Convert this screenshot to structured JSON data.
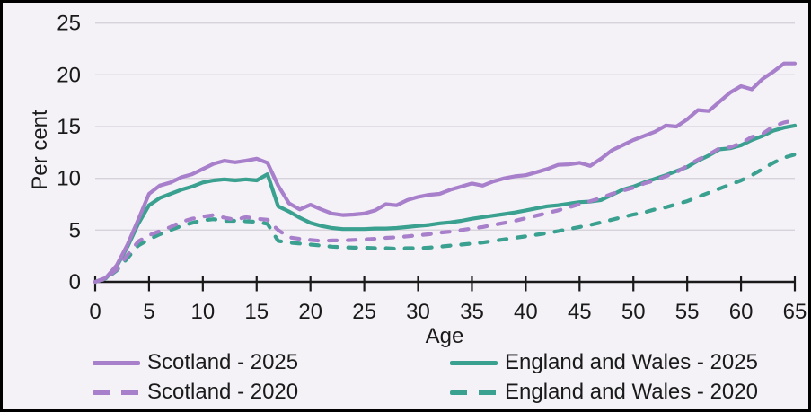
{
  "colors": {
    "purple": "#a87fcb",
    "teal": "#3aa08f",
    "grid": "#d6d3da",
    "axis": "#1a1a1a",
    "background": "#f4f2f7",
    "frame": "#000000"
  },
  "chart_data": {
    "type": "line",
    "title": "",
    "xlabel": "Age",
    "ylabel": "Per cent",
    "xlim": [
      0,
      65
    ],
    "ylim": [
      0,
      25
    ],
    "x_ticks": [
      0,
      5,
      10,
      15,
      20,
      25,
      30,
      35,
      40,
      45,
      50,
      55,
      60,
      65
    ],
    "y_ticks": [
      0,
      5,
      10,
      15,
      20,
      25
    ],
    "grid": "horizontal",
    "legend_position": "bottom",
    "x_start": 0,
    "x_step": 1,
    "series": [
      {
        "id": "scotland-2025",
        "name": "Scotland - 2025",
        "color": "#a87fcb",
        "style": "solid",
        "values": [
          0,
          0.4,
          1.6,
          3.6,
          6.0,
          8.5,
          9.3,
          9.6,
          10.1,
          10.4,
          10.9,
          11.4,
          11.7,
          11.55,
          11.7,
          11.9,
          11.5,
          9.3,
          7.6,
          7.0,
          7.45,
          7.0,
          6.6,
          6.45,
          6.5,
          6.6,
          6.9,
          7.5,
          7.4,
          7.9,
          8.2,
          8.4,
          8.5,
          8.9,
          9.2,
          9.5,
          9.3,
          9.7,
          10.0,
          10.2,
          10.3,
          10.6,
          10.9,
          11.3,
          11.35,
          11.5,
          11.2,
          11.9,
          12.7,
          13.2,
          13.7,
          14.1,
          14.5,
          15.1,
          15.0,
          15.7,
          16.6,
          16.5,
          17.4,
          18.3,
          18.9,
          18.6,
          19.6,
          20.3,
          21.1,
          21.1
        ]
      },
      {
        "id": "scotland-2020",
        "name": "Scotland - 2020",
        "color": "#a87fcb",
        "style": "dashed",
        "values": [
          0,
          0.3,
          1.2,
          2.6,
          3.9,
          4.5,
          4.9,
          5.3,
          5.8,
          6.1,
          6.3,
          6.45,
          6.2,
          6.0,
          6.25,
          6.1,
          6.0,
          5.0,
          4.3,
          4.15,
          4.05,
          3.95,
          4.0,
          4.0,
          4.05,
          4.1,
          4.15,
          4.25,
          4.3,
          4.4,
          4.5,
          4.6,
          4.75,
          4.85,
          5.0,
          5.15,
          5.3,
          5.5,
          5.7,
          5.9,
          6.15,
          6.4,
          6.65,
          6.9,
          7.2,
          7.5,
          7.8,
          8.1,
          8.5,
          8.8,
          9.1,
          9.5,
          9.8,
          10.2,
          10.6,
          11.2,
          11.8,
          12.3,
          12.9,
          13.0,
          13.4,
          14.0,
          14.3,
          15.0,
          15.4,
          15.6
        ]
      },
      {
        "id": "england-wales-2025",
        "name": "England and Wales - 2025",
        "color": "#3aa08f",
        "style": "solid",
        "values": [
          0,
          0.35,
          1.5,
          3.4,
          5.6,
          7.4,
          8.1,
          8.5,
          8.9,
          9.2,
          9.6,
          9.8,
          9.9,
          9.8,
          9.9,
          9.8,
          10.4,
          7.3,
          6.8,
          6.2,
          5.7,
          5.4,
          5.2,
          5.1,
          5.1,
          5.1,
          5.15,
          5.15,
          5.2,
          5.3,
          5.4,
          5.5,
          5.65,
          5.75,
          5.9,
          6.1,
          6.25,
          6.4,
          6.55,
          6.7,
          6.9,
          7.1,
          7.3,
          7.4,
          7.55,
          7.7,
          7.75,
          7.9,
          8.4,
          8.9,
          9.2,
          9.6,
          9.95,
          10.3,
          10.7,
          11.1,
          11.7,
          12.2,
          12.8,
          12.9,
          13.2,
          13.7,
          14.1,
          14.6,
          14.9,
          15.1
        ]
      },
      {
        "id": "england-wales-2020",
        "name": "England and Wales - 2020",
        "color": "#3aa08f",
        "style": "dashed",
        "values": [
          0,
          0.3,
          1.1,
          2.3,
          3.5,
          4.1,
          4.6,
          5.0,
          5.4,
          5.7,
          5.95,
          6.05,
          5.9,
          5.9,
          5.85,
          5.8,
          5.6,
          3.95,
          3.8,
          3.7,
          3.6,
          3.5,
          3.4,
          3.35,
          3.3,
          3.3,
          3.25,
          3.25,
          3.2,
          3.25,
          3.25,
          3.3,
          3.4,
          3.5,
          3.6,
          3.7,
          3.8,
          3.95,
          4.1,
          4.25,
          4.4,
          4.55,
          4.7,
          4.9,
          5.1,
          5.3,
          5.5,
          5.75,
          6.0,
          6.25,
          6.5,
          6.7,
          7.0,
          7.2,
          7.5,
          7.8,
          8.2,
          8.6,
          9.0,
          9.4,
          9.8,
          10.3,
          10.9,
          11.5,
          12.0,
          12.3
        ]
      }
    ]
  }
}
